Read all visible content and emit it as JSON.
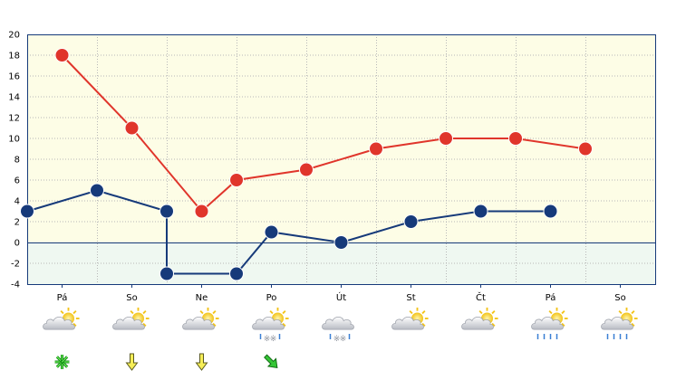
{
  "chart_data": {
    "type": "line",
    "title": "",
    "xlabel": "",
    "ylabel": "",
    "categories": [
      "Pá",
      "So",
      "Ne",
      "Po",
      "Út",
      "St",
      "Čt",
      "Pá",
      "So"
    ],
    "ylim": [
      -4,
      20
    ],
    "yticks": [
      -4,
      -2,
      0,
      2,
      4,
      6,
      8,
      10,
      12,
      14,
      16,
      18,
      20
    ],
    "grid": true,
    "series": [
      {
        "color": "#e0352b",
        "points": [
          [
            0.5,
            18
          ],
          [
            1.5,
            11
          ],
          [
            2.5,
            3
          ],
          [
            3,
            6
          ],
          [
            4,
            7
          ],
          [
            5,
            9
          ],
          [
            6,
            10
          ],
          [
            7,
            10
          ],
          [
            8,
            9
          ]
        ]
      },
      {
        "color": "#163a7a",
        "points": [
          [
            0,
            3
          ],
          [
            1,
            5
          ],
          [
            2,
            3
          ],
          [
            2,
            -3
          ],
          [
            3,
            -3
          ],
          [
            3.5,
            1
          ],
          [
            4.5,
            0
          ],
          [
            5.5,
            2
          ],
          [
            6.5,
            3
          ],
          [
            7.5,
            3
          ]
        ]
      }
    ],
    "weather_icons": [
      "sun-cloud-icon",
      "sun-cloud-icon",
      "sun-cloud-icon",
      "sun-cloud-snow-rain-icon",
      "cloud-snow-rain-icon",
      "sun-cloud-icon",
      "sun-cloud-icon",
      "sun-cloud-rain-icon",
      "sun-cloud-rain-icon"
    ],
    "wind_icons": [
      "calm-wind-icon",
      "wind-arrow-south-icon",
      "wind-arrow-south-icon",
      "wind-arrow-southeast-icon"
    ]
  }
}
